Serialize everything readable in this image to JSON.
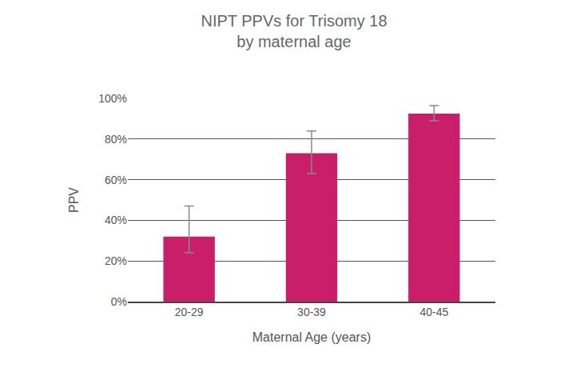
{
  "chart_data": {
    "type": "bar",
    "title": "NIPT PPVs for Trisomy 18\nby maternal age",
    "x_label": "Maternal Age (years)",
    "y_label": "PPV",
    "categories": [
      "20-29",
      "30-39",
      "40-45"
    ],
    "values": [
      32,
      73,
      92.5
    ],
    "error_minus": [
      8,
      10,
      3.5
    ],
    "error_plus": [
      15,
      11,
      4
    ],
    "color": "#c91f6b",
    "ylim": [
      0,
      100
    ],
    "yticks": [
      {
        "value": 0,
        "label": "0%"
      },
      {
        "value": 20,
        "label": "20%"
      },
      {
        "value": 40,
        "label": "40%"
      },
      {
        "value": 60,
        "label": "60%"
      },
      {
        "value": 80,
        "label": "80%"
      },
      {
        "value": 100,
        "label": "100%"
      }
    ],
    "grid": true
  }
}
